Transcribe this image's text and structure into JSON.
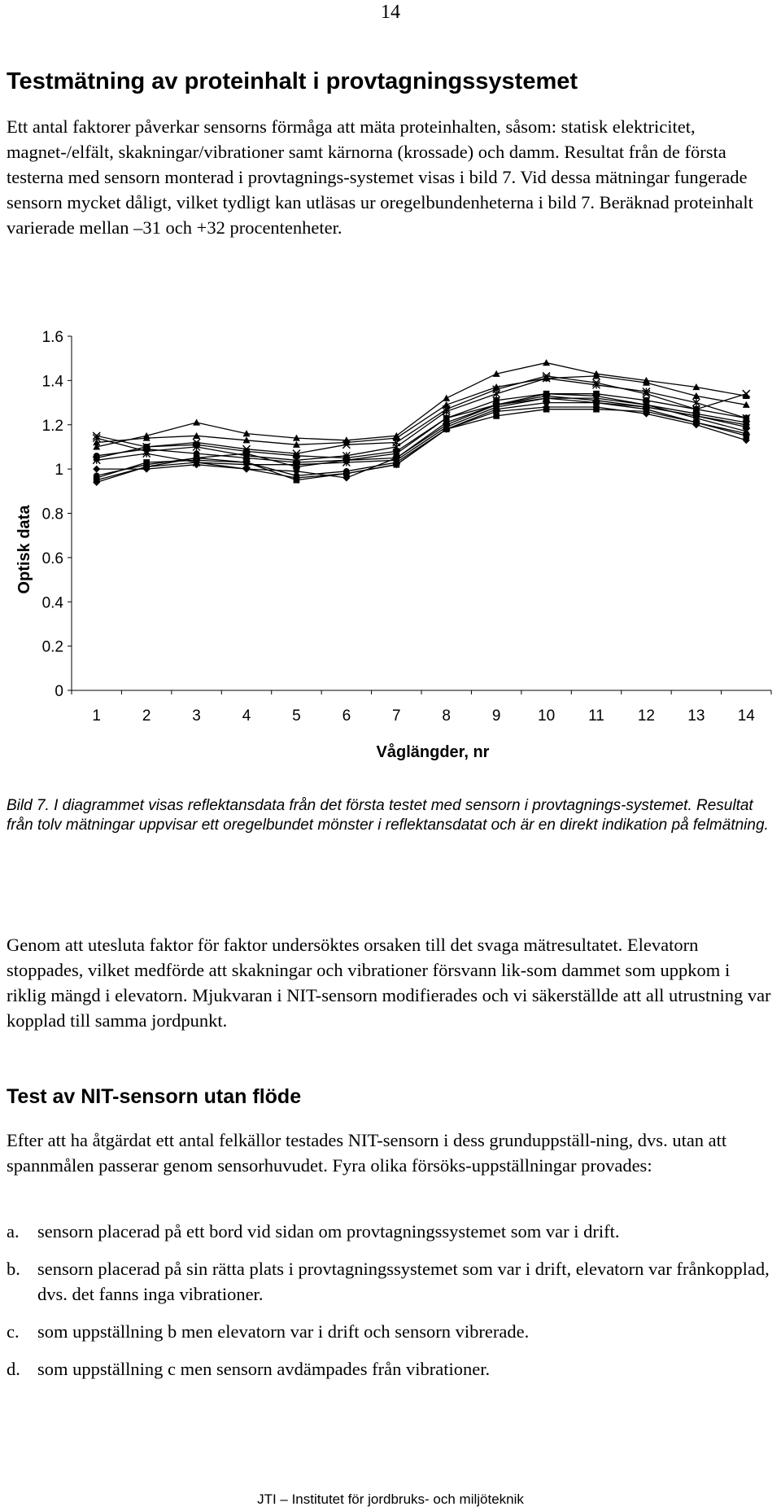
{
  "page_number": "14",
  "section1": {
    "title": "Testmätning av proteinhalt i provtagningssystemet",
    "paragraph": "Ett antal faktorer påverkar sensorns förmåga att mäta proteinhalten, såsom: statisk elektricitet, magnet-/elfält, skakningar/vibrationer samt kärnorna (krossade) och damm. Resultat från de första testerna med sensorn monterad i provtagnings-systemet visas i bild 7. Vid dessa mätningar fungerade sensorn mycket dåligt, vilket tydligt kan utläsas ur oregelbundenheterna i bild 7. Beräknad proteinhalt varierade mellan –31 och +32 procentenheter."
  },
  "chart_data": {
    "type": "line",
    "xlabel": "Våglängder, nr",
    "ylabel": "Optisk data",
    "ylim": [
      0,
      1.6
    ],
    "yticks": [
      "0",
      "0.2",
      "0.4",
      "0.6",
      "0.8",
      "1",
      "1.2",
      "1.4",
      "1.6"
    ],
    "x": [
      1,
      2,
      3,
      4,
      5,
      6,
      7,
      8,
      9,
      10,
      11,
      12,
      13,
      14
    ],
    "grid": false,
    "legend": "none",
    "line_color": "#000000",
    "series": [
      {
        "marker": "triangle",
        "values": [
          1.1,
          1.15,
          1.21,
          1.16,
          1.14,
          1.13,
          1.15,
          1.32,
          1.43,
          1.48,
          1.43,
          1.4,
          1.37,
          1.33
        ]
      },
      {
        "marker": "triangle",
        "values": [
          1.12,
          1.14,
          1.15,
          1.13,
          1.11,
          1.12,
          1.14,
          1.29,
          1.37,
          1.41,
          1.42,
          1.39,
          1.33,
          1.29
        ]
      },
      {
        "marker": "cross",
        "values": [
          1.15,
          1.1,
          1.12,
          1.09,
          1.07,
          1.11,
          1.12,
          1.27,
          1.36,
          1.42,
          1.39,
          1.34,
          1.27,
          1.34
        ]
      },
      {
        "marker": "star",
        "values": [
          1.14,
          1.08,
          1.1,
          1.06,
          1.04,
          1.06,
          1.1,
          1.26,
          1.34,
          1.41,
          1.38,
          1.35,
          1.3,
          1.23
        ]
      },
      {
        "marker": "square",
        "values": [
          1.05,
          1.1,
          1.11,
          1.08,
          1.06,
          1.05,
          1.08,
          1.23,
          1.31,
          1.34,
          1.34,
          1.31,
          1.27,
          1.23
        ]
      },
      {
        "marker": "circle",
        "values": [
          1.06,
          1.09,
          1.07,
          1.05,
          1.03,
          1.04,
          1.07,
          1.23,
          1.29,
          1.34,
          1.33,
          1.29,
          1.25,
          1.21
        ]
      },
      {
        "marker": "square",
        "values": [
          0.95,
          1.01,
          1.05,
          1.07,
          1.01,
          1.04,
          1.05,
          1.21,
          1.29,
          1.32,
          1.3,
          1.28,
          1.24,
          1.19
        ]
      },
      {
        "marker": "diamond",
        "values": [
          1.0,
          1.0,
          1.02,
          1.0,
          0.99,
          0.96,
          1.05,
          1.2,
          1.29,
          1.33,
          1.31,
          1.28,
          1.24,
          1.2
        ]
      },
      {
        "marker": "star",
        "values": [
          1.04,
          1.07,
          1.03,
          1.02,
          1.02,
          1.03,
          1.04,
          1.19,
          1.28,
          1.32,
          1.32,
          1.29,
          1.23,
          1.17
        ]
      },
      {
        "marker": "circle",
        "values": [
          0.97,
          1.02,
          1.05,
          1.03,
          0.97,
          0.99,
          1.03,
          1.18,
          1.27,
          1.3,
          1.3,
          1.27,
          1.21,
          1.16
        ]
      },
      {
        "marker": "square",
        "values": [
          0.96,
          1.03,
          1.04,
          1.03,
          0.95,
          0.98,
          1.02,
          1.18,
          1.24,
          1.27,
          1.27,
          1.26,
          1.21,
          1.15
        ]
      },
      {
        "marker": "diamond",
        "values": [
          0.94,
          1.01,
          1.03,
          1.0,
          0.96,
          0.98,
          1.02,
          1.18,
          1.26,
          1.28,
          1.28,
          1.25,
          1.2,
          1.13
        ]
      }
    ]
  },
  "caption": "Bild 7. I diagrammet visas reflektansdata från det första testet med sensorn i provtagnings-systemet. Resultat från tolv mätningar uppvisar ett oregelbundet mönster i reflektansdatat och är en direkt indikation på felmätning.",
  "paragraph2": "Genom att utesluta faktor för faktor undersöktes orsaken till det svaga mätresultatet. Elevatorn stoppades, vilket medförde att skakningar och vibrationer försvann lik-som dammet som uppkom i riklig mängd i elevatorn. Mjukvaran i NIT-sensorn modifierades och vi säkerställde att all utrustning var kopplad till samma jordpunkt.",
  "section2": {
    "title": "Test av NIT-sensorn utan flöde",
    "paragraph": "Efter att ha åtgärdat ett antal felkällor testades NIT-sensorn i dess grunduppställ-ning, dvs. utan att spannmålen passerar genom sensorhuvudet. Fyra olika försöks-uppställningar provades:",
    "list": [
      {
        "marker": "a.",
        "text": "sensorn placerad på ett bord vid sidan om provtagningssystemet som var i drift."
      },
      {
        "marker": "b.",
        "text": "sensorn placerad på sin rätta plats i provtagningssystemet som var i drift, elevatorn var frånkopplad, dvs. det fanns inga vibrationer."
      },
      {
        "marker": "c.",
        "text": "som uppställning b men elevatorn var i drift och sensorn vibrerade."
      },
      {
        "marker": "d.",
        "text": "som uppställning c men sensorn avdämpades från vibrationer."
      }
    ]
  },
  "footer": "JTI – Institutet för jordbruks- och miljöteknik"
}
